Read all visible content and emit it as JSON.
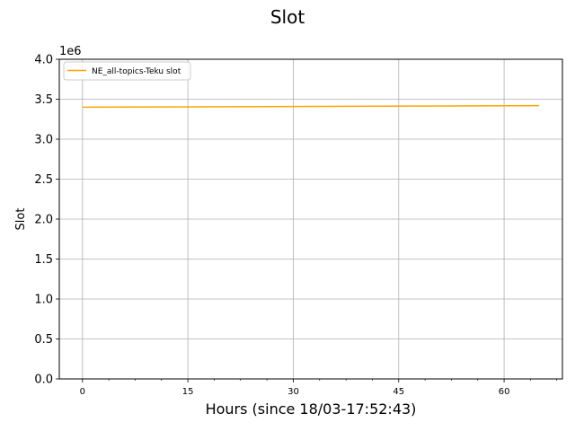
{
  "chart_data": {
    "type": "line",
    "title": "Slot",
    "xlabel": "Hours (since 18/03-17:52:43)",
    "ylabel": "Slot",
    "y_offset_label": "1e6",
    "xlim": [
      -3.3,
      68.3
    ],
    "ylim": [
      0,
      4.0
    ],
    "x_ticks": [
      0,
      15,
      30,
      45,
      60
    ],
    "x_tick_labels": [
      "0",
      "15",
      "30",
      "45",
      "60"
    ],
    "x_minor_ticks": [
      3.75,
      7.5,
      11.25,
      18.75,
      22.5,
      26.25,
      33.75,
      37.5,
      41.25,
      48.75,
      52.5,
      56.25,
      63.75,
      67.5
    ],
    "y_ticks": [
      0,
      0.5,
      1.0,
      1.5,
      2.0,
      2.5,
      3.0,
      3.5,
      4.0
    ],
    "y_tick_labels": [
      "0.0",
      "0.5",
      "1.0",
      "1.5",
      "2.0",
      "2.5",
      "3.0",
      "3.5",
      "4.0"
    ],
    "grid": true,
    "legend_position": "top-left",
    "series": [
      {
        "name": "NE_all-topics-Teku slot",
        "color": "#ffa500",
        "x": [
          0,
          65
        ],
        "y": [
          3.4,
          3.42
        ]
      }
    ]
  }
}
